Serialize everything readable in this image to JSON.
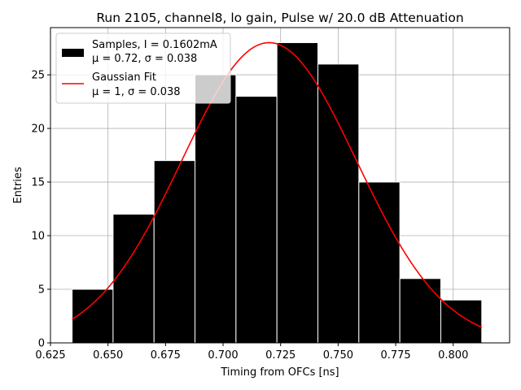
{
  "chart_data": {
    "type": "bar",
    "title": "Run 2105, channel8, lo gain, Pulse w/ 20.0 dB Attenuation",
    "xlabel": "Timing from OFCs [ns]",
    "ylabel": "Entries",
    "xlim": [
      0.625,
      0.8245
    ],
    "ylim": [
      0,
      29.4
    ],
    "xticks": [
      0.625,
      0.65,
      0.675,
      0.7,
      0.725,
      0.75,
      0.775,
      0.8
    ],
    "xtick_labels": [
      "0.625",
      "0.650",
      "0.675",
      "0.700",
      "0.725",
      "0.750",
      "0.775",
      "0.800"
    ],
    "yticks": [
      0,
      5,
      10,
      15,
      20,
      25
    ],
    "ytick_labels": [
      "0",
      "5",
      "10",
      "15",
      "20",
      "25"
    ],
    "grid": true,
    "legend_position": "top-left",
    "bins": [
      {
        "start": 0.6344,
        "end": 0.6522,
        "count": 5
      },
      {
        "start": 0.6522,
        "end": 0.67,
        "count": 12
      },
      {
        "start": 0.67,
        "end": 0.6878,
        "count": 17
      },
      {
        "start": 0.6878,
        "end": 0.7056,
        "count": 25
      },
      {
        "start": 0.7056,
        "end": 0.7234,
        "count": 23
      },
      {
        "start": 0.7234,
        "end": 0.7412,
        "count": 28
      },
      {
        "start": 0.7412,
        "end": 0.759,
        "count": 26
      },
      {
        "start": 0.759,
        "end": 0.7768,
        "count": 15
      },
      {
        "start": 0.7768,
        "end": 0.7946,
        "count": 6
      },
      {
        "start": 0.7946,
        "end": 0.8124,
        "count": 4
      }
    ],
    "fit": {
      "amplitude": 28.0,
      "mean": 0.72,
      "sigma": 0.038,
      "x_start": 0.6344,
      "x_end": 0.8124
    },
    "series": [
      {
        "name": "Samples, I = 0.1602mA",
        "name_line2": "μ = 0.72, σ = 0.038",
        "color": "#000000",
        "kind": "histogram"
      },
      {
        "name": "Gaussian Fit",
        "name_line2": "μ = 1, σ = 0.038",
        "color": "#ff0000",
        "kind": "line"
      }
    ],
    "colors": {
      "bars": "#000000",
      "bar_edge": "#ffffff",
      "fit": "#ff0000",
      "grid": "#b0b0b0"
    }
  }
}
